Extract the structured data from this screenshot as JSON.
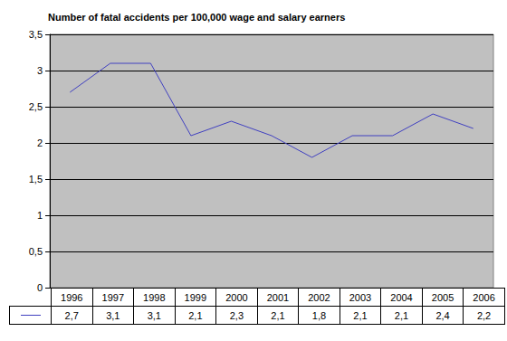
{
  "chart_data": {
    "type": "line",
    "title": "Number of fatal accidents per 100,000 wage and salary earners",
    "categories": [
      "1996",
      "1997",
      "1998",
      "1999",
      "2000",
      "2001",
      "2002",
      "2003",
      "2004",
      "2005",
      "2006"
    ],
    "values": [
      2.7,
      3.1,
      3.1,
      2.1,
      2.3,
      2.1,
      1.8,
      2.1,
      2.1,
      2.4,
      2.2
    ],
    "value_labels": [
      "2,7",
      "3,1",
      "3,1",
      "2,1",
      "2,3",
      "2,1",
      "1,8",
      "2,1",
      "2,1",
      "2,4",
      "2,2"
    ],
    "color": "#4040c0",
    "ylim": [
      0,
      3.5
    ],
    "yticks": [
      0,
      {
        "value": 0.5,
        "label": "0,5"
      },
      1,
      {
        "value": 1.5,
        "label": "1,5"
      },
      2,
      {
        "value": 2.5,
        "label": "2,5"
      },
      3,
      {
        "value": 3.5,
        "label": "3,5"
      }
    ],
    "grid": true
  }
}
